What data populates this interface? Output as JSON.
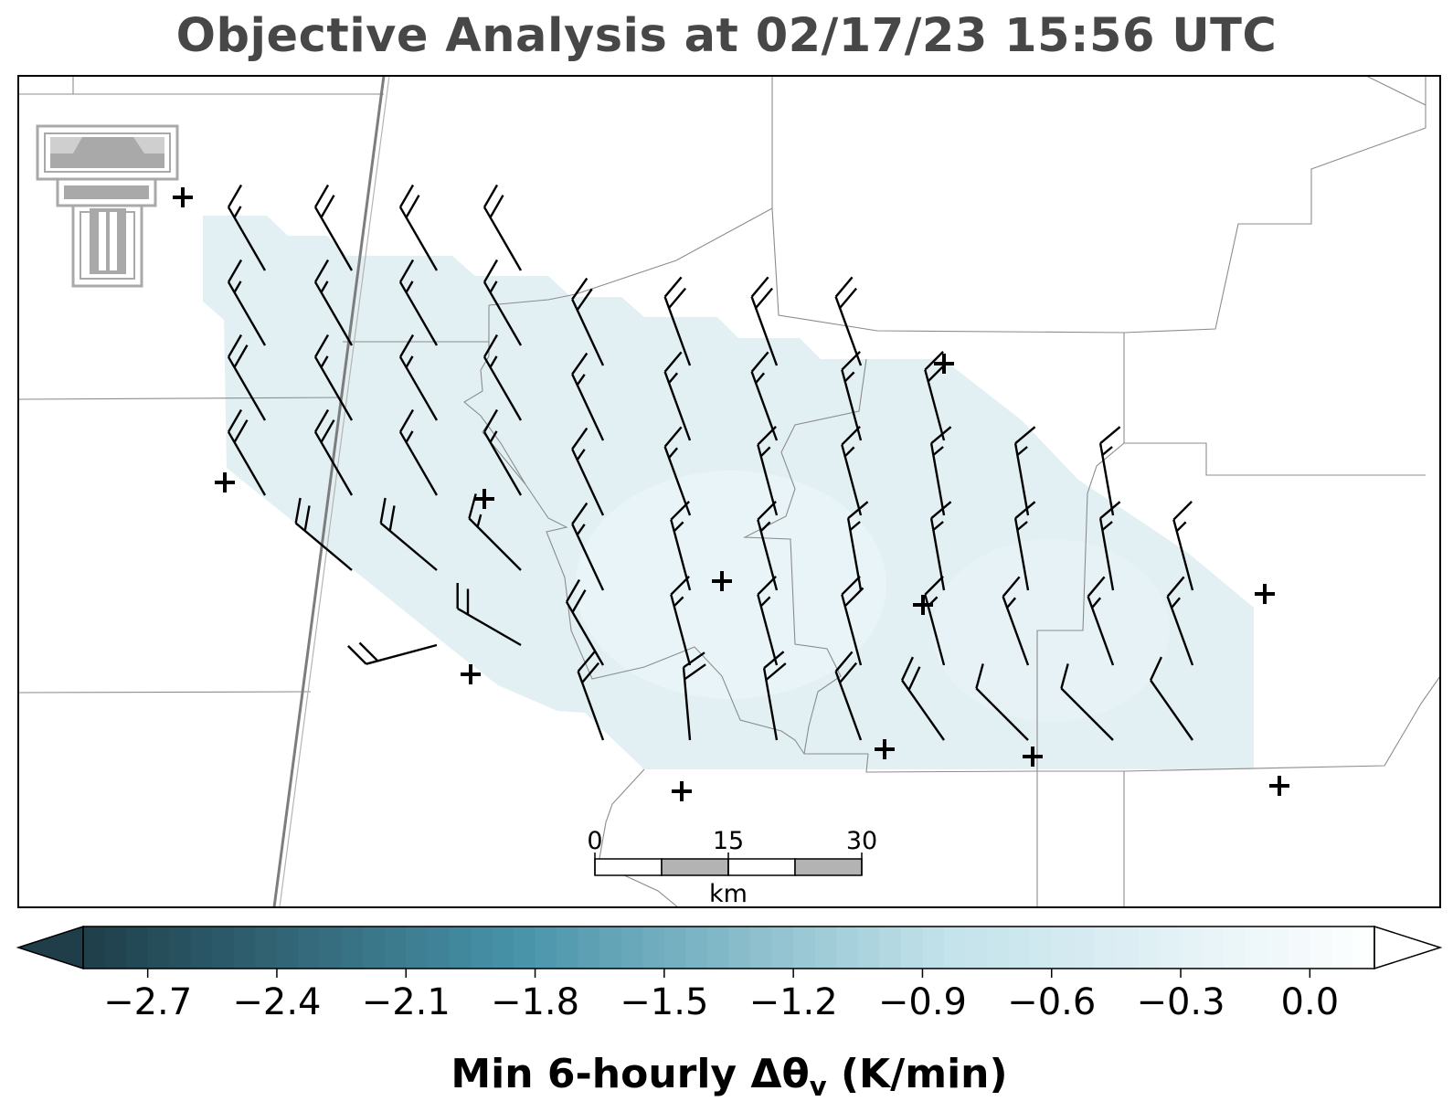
{
  "title": "Objective Analysis at 02/17/23 15:56 UTC",
  "logo": {
    "name": "texas-tech-double-t-logo",
    "color": "#a9a9a9"
  },
  "scale_bar": {
    "labels": [
      "0",
      "15",
      "30"
    ],
    "unit": "km"
  },
  "colorbar": {
    "label_main": "Min 6-hourly Δθ",
    "label_sub": "v",
    "label_unit": " (K/min)",
    "min": -2.85,
    "max": 0.15,
    "ticks": [
      "−2.7",
      "−2.4",
      "−2.1",
      "−1.8",
      "−1.5",
      "−1.2",
      "−0.9",
      "−0.6",
      "−0.3",
      "0.0"
    ],
    "tick_values": [
      -2.7,
      -2.4,
      -2.1,
      -1.8,
      -1.5,
      -1.2,
      -0.9,
      -0.6,
      -0.3,
      0.0
    ],
    "colors": [
      "#1f3e4a",
      "#4792a8",
      "#c2e2ea",
      "#ffffff"
    ],
    "extend": "both"
  },
  "field_color": "#e2f0f4",
  "field_light_color": "#edf6f9",
  "station_symbol": "plus"
}
